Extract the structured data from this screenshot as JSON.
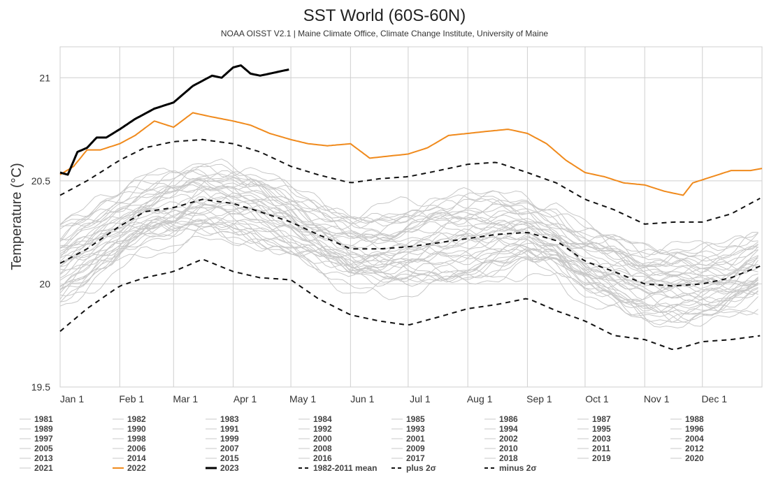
{
  "chart_data": {
    "type": "line",
    "title": "SST World (60S-60N)",
    "subtitle": "NOAA OISST V2.1 | Maine Climate Office, Climate Change Institute, University of Maine",
    "ylabel": "Temperature (°C)",
    "ylim": [
      19.5,
      21.15
    ],
    "yticks": [
      19.5,
      20,
      20.5,
      21
    ],
    "x_axis": "day of year",
    "xlim": [
      1,
      366
    ],
    "month_ticks": [
      {
        "label": "Jan 1",
        "day": 1
      },
      {
        "label": "Feb 1",
        "day": 32
      },
      {
        "label": "Mar 1",
        "day": 60
      },
      {
        "label": "Apr 1",
        "day": 91
      },
      {
        "label": "May 1",
        "day": 121
      },
      {
        "label": "Jun 1",
        "day": 152
      },
      {
        "label": "Jul 1",
        "day": 182
      },
      {
        "label": "Aug 1",
        "day": 213
      },
      {
        "label": "Sep 1",
        "day": 244
      },
      {
        "label": "Oct 1",
        "day": 274
      },
      {
        "label": "Nov 1",
        "day": 305
      },
      {
        "label": "Dec 1",
        "day": 335
      }
    ],
    "grid": true,
    "legend_position": "bottom",
    "colors": {
      "background_years": "#c8c8c8",
      "y2022": "#f08a1c",
      "y2023": "#000000",
      "stats": "#111111"
    },
    "background_years": [
      1981,
      1982,
      1983,
      1984,
      1985,
      1986,
      1987,
      1988,
      1989,
      1990,
      1991,
      1992,
      1993,
      1994,
      1995,
      1996,
      1997,
      1998,
      1999,
      2000,
      2001,
      2002,
      2003,
      2004,
      2005,
      2006,
      2007,
      2008,
      2009,
      2010,
      2011,
      2012,
      2013,
      2014,
      2015,
      2016,
      2017,
      2018,
      2019,
      2020,
      2021
    ],
    "series": [
      {
        "name": "1982-2011 mean",
        "style": "dashed",
        "x": [
          1,
          15,
          32,
          45,
          60,
          75,
          91,
          105,
          121,
          135,
          152,
          167,
          182,
          198,
          213,
          228,
          244,
          259,
          274,
          289,
          305,
          320,
          335,
          350,
          366
        ],
        "y": [
          20.1,
          20.17,
          20.28,
          20.35,
          20.37,
          20.41,
          20.39,
          20.35,
          20.3,
          20.24,
          20.17,
          20.17,
          20.18,
          20.2,
          20.22,
          20.24,
          20.25,
          20.21,
          20.11,
          20.06,
          20.0,
          19.99,
          20.0,
          20.03,
          20.09
        ]
      },
      {
        "name": "plus 2σ",
        "style": "dashed",
        "x": [
          1,
          15,
          32,
          45,
          60,
          75,
          91,
          105,
          121,
          135,
          152,
          167,
          182,
          198,
          213,
          228,
          244,
          259,
          274,
          289,
          305,
          320,
          335,
          350,
          366
        ],
        "y": [
          20.43,
          20.5,
          20.6,
          20.66,
          20.69,
          20.7,
          20.68,
          20.64,
          20.57,
          20.53,
          20.49,
          20.51,
          20.52,
          20.55,
          20.58,
          20.59,
          20.54,
          20.49,
          20.41,
          20.36,
          20.29,
          20.3,
          20.3,
          20.34,
          20.42
        ]
      },
      {
        "name": "minus 2σ",
        "style": "dashed",
        "x": [
          1,
          15,
          32,
          45,
          60,
          75,
          91,
          105,
          121,
          135,
          152,
          167,
          182,
          198,
          213,
          228,
          244,
          259,
          274,
          289,
          305,
          320,
          335,
          350,
          366
        ],
        "y": [
          19.77,
          19.88,
          19.99,
          20.03,
          20.06,
          20.12,
          20.06,
          20.03,
          20.02,
          19.93,
          19.85,
          19.82,
          19.8,
          19.84,
          19.88,
          19.9,
          19.93,
          19.87,
          19.82,
          19.75,
          19.73,
          19.68,
          19.72,
          19.73,
          19.75
        ]
      },
      {
        "name": "2022",
        "color": "#f08a1c",
        "x": [
          1,
          8,
          15,
          22,
          32,
          40,
          50,
          60,
          70,
          80,
          91,
          100,
          110,
          121,
          130,
          140,
          152,
          162,
          172,
          182,
          192,
          203,
          213,
          223,
          234,
          244,
          254,
          264,
          274,
          284,
          294,
          305,
          315,
          325,
          330,
          340,
          350,
          360,
          366
        ],
        "y": [
          20.53,
          20.57,
          20.65,
          20.65,
          20.68,
          20.72,
          20.79,
          20.76,
          20.83,
          20.81,
          20.79,
          20.77,
          20.73,
          20.7,
          20.68,
          20.67,
          20.68,
          20.61,
          20.62,
          20.63,
          20.66,
          20.72,
          20.73,
          20.74,
          20.75,
          20.73,
          20.68,
          20.6,
          20.54,
          20.52,
          20.49,
          20.48,
          20.45,
          20.43,
          20.49,
          20.52,
          20.55,
          20.55,
          20.56
        ]
      },
      {
        "name": "2023",
        "color": "#000000",
        "x": [
          1,
          5,
          10,
          15,
          20,
          25,
          32,
          40,
          50,
          60,
          70,
          80,
          85,
          91,
          95,
          100,
          105,
          110,
          115,
          120
        ],
        "y": [
          20.54,
          20.53,
          20.64,
          20.66,
          20.71,
          20.71,
          20.75,
          20.8,
          20.85,
          20.88,
          20.96,
          21.01,
          21.0,
          21.05,
          21.06,
          21.02,
          21.01,
          21.02,
          21.03,
          21.04
        ]
      }
    ]
  },
  "legend": {
    "items": [
      "1981",
      "1982",
      "1983",
      "1984",
      "1985",
      "1986",
      "1987",
      "1988",
      "1989",
      "1990",
      "1991",
      "1992",
      "1993",
      "1994",
      "1995",
      "1996",
      "1997",
      "1998",
      "1999",
      "2000",
      "2001",
      "2002",
      "2003",
      "2004",
      "2005",
      "2006",
      "2007",
      "2008",
      "2009",
      "2010",
      "2011",
      "2012",
      "2013",
      "2014",
      "2015",
      "2016",
      "2017",
      "2018",
      "2019",
      "2020",
      "2021",
      "2022",
      "2023",
      "1982-2011 mean",
      "plus 2σ",
      "minus 2σ"
    ]
  }
}
